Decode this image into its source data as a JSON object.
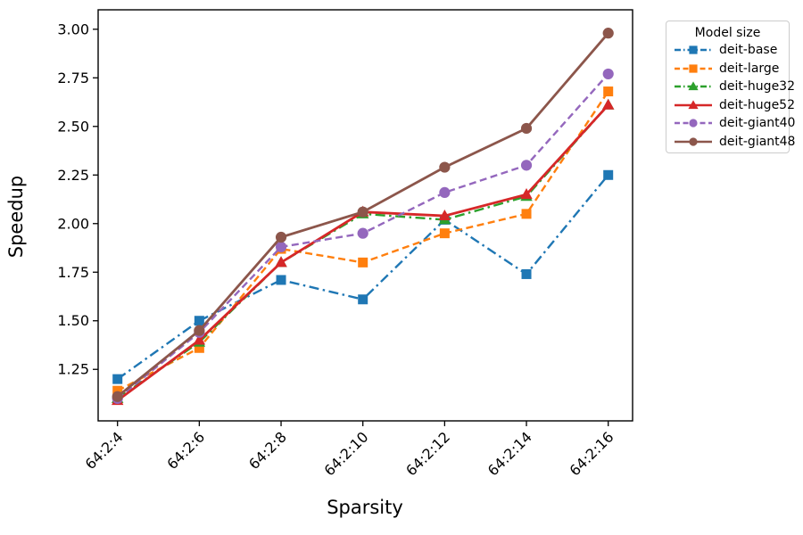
{
  "chart_data": {
    "type": "line",
    "title": "",
    "xlabel": "Sparsity",
    "ylabel": "Speedup",
    "categories": [
      "64:2:4",
      "64:2:6",
      "64:2:8",
      "64:2:10",
      "64:2:12",
      "64:2:14",
      "64:2:16"
    ],
    "yticks": [
      "1.25",
      "1.50",
      "1.75",
      "2.00",
      "2.25",
      "2.50",
      "2.75",
      "3.00"
    ],
    "ylim": [
      0.985,
      3.1
    ],
    "grid": false,
    "legend": {
      "title": "Model size",
      "position": "outside-top-right"
    },
    "series": [
      {
        "name": "deit-base",
        "color": "#1f77b4",
        "linestyle": "dashdot",
        "marker": "square",
        "values": [
          1.2,
          1.5,
          1.71,
          1.61,
          2.02,
          1.74,
          2.25
        ]
      },
      {
        "name": "deit-large",
        "color": "#ff7f0e",
        "linestyle": "dashed",
        "marker": "square",
        "values": [
          1.14,
          1.36,
          1.87,
          1.8,
          1.95,
          2.05,
          2.68
        ]
      },
      {
        "name": "deit-huge32",
        "color": "#2ca02c",
        "linestyle": "dashdot",
        "marker": "triangle",
        "values": [
          1.1,
          1.39,
          1.8,
          2.05,
          2.02,
          2.14,
          2.61
        ]
      },
      {
        "name": "deit-huge52",
        "color": "#d62728",
        "linestyle": "solid",
        "marker": "triangle",
        "values": [
          1.09,
          1.4,
          1.8,
          2.06,
          2.04,
          2.15,
          2.61
        ]
      },
      {
        "name": "deit-giant40",
        "color": "#9467bd",
        "linestyle": "dashed",
        "marker": "circle",
        "values": [
          1.1,
          1.44,
          1.88,
          1.95,
          2.16,
          2.3,
          2.77
        ]
      },
      {
        "name": "deit-giant48",
        "color": "#8c564b",
        "linestyle": "solid",
        "marker": "circle",
        "values": [
          1.11,
          1.45,
          1.93,
          2.06,
          2.29,
          2.49,
          2.98
        ]
      }
    ]
  }
}
